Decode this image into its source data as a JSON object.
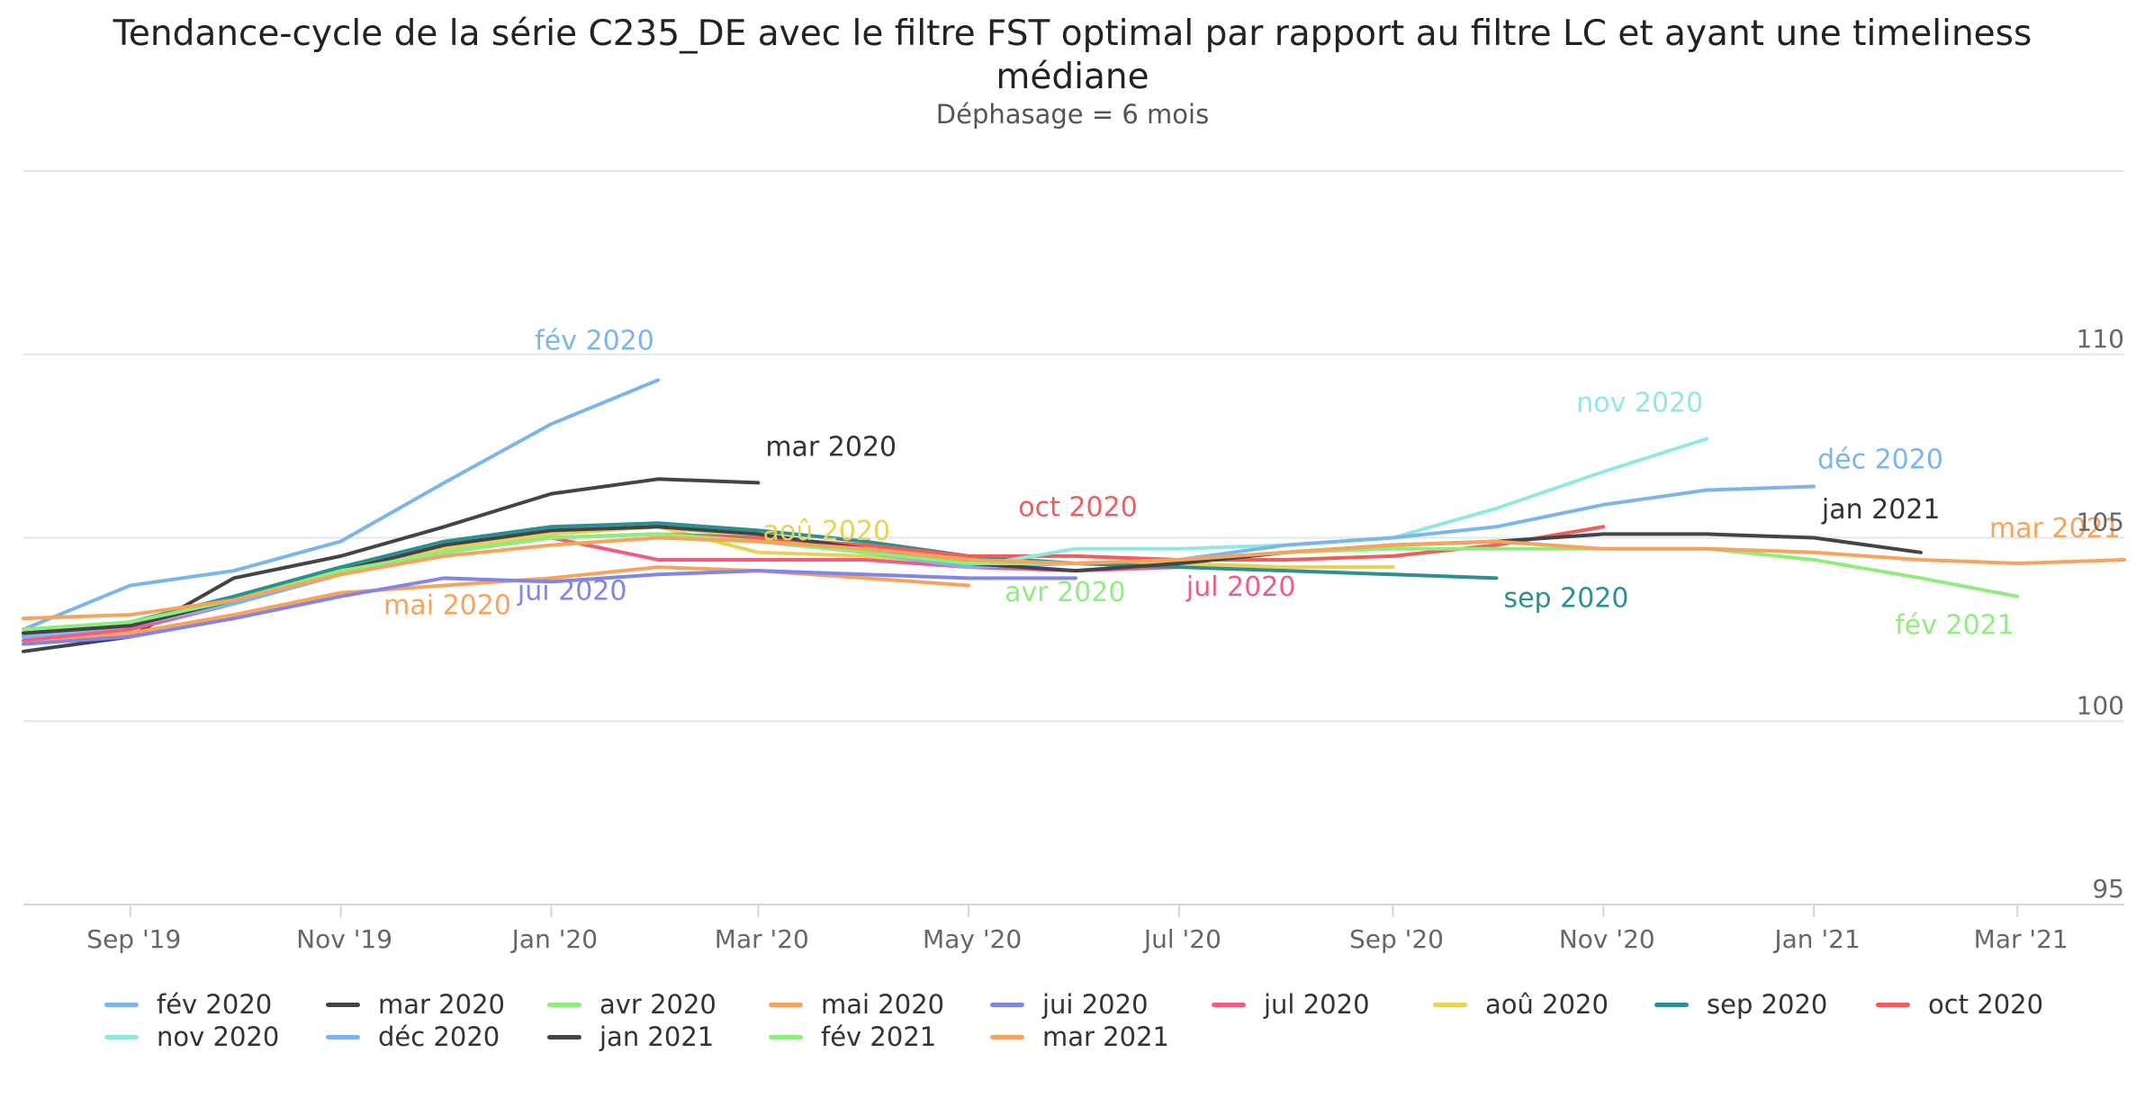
{
  "title": "Tendance-cycle de la série C235_DE avec le filtre FST optimal par rapport au filtre LC et ayant une timeliness médiane",
  "subtitle": "Déphasage = 6 mois",
  "chart_data": {
    "type": "line",
    "title": "Tendance-cycle de la série C235_DE avec le filtre FST optimal par rapport au filtre LC et ayant une timeliness médiane",
    "subtitle": "Déphasage = 6 mois",
    "xlabel": "",
    "ylabel": "",
    "x_range": [
      "2019-08",
      "2021-04"
    ],
    "ylim": [
      95,
      115
    ],
    "y_ticks": [
      95,
      100,
      105,
      110
    ],
    "x_ticks": [
      {
        "date": "2019-09",
        "label": "Sep '19"
      },
      {
        "date": "2019-11",
        "label": "Nov '19"
      },
      {
        "date": "2020-01",
        "label": "Jan '20"
      },
      {
        "date": "2020-03",
        "label": "Mar '20"
      },
      {
        "date": "2020-05",
        "label": "May '20"
      },
      {
        "date": "2020-07",
        "label": "Jul '20"
      },
      {
        "date": "2020-09",
        "label": "Sep '20"
      },
      {
        "date": "2020-11",
        "label": "Nov '20"
      },
      {
        "date": "2021-01",
        "label": "Jan '21"
      },
      {
        "date": "2021-03",
        "label": "Mar '21"
      }
    ],
    "grid": true,
    "legend_position": "bottom",
    "series": [
      {
        "name": "fév 2020",
        "color": "#7cb5ec",
        "start": "2019-08",
        "values": [
          102.5,
          103.7,
          104.1,
          104.9,
          106.5,
          108.1,
          109.3
        ]
      },
      {
        "name": "mar 2020",
        "color": "#434348",
        "start": "2019-08",
        "values": [
          101.9,
          102.3,
          103.9,
          104.5,
          105.3,
          106.2,
          106.6,
          106.5
        ]
      },
      {
        "name": "avr 2020",
        "color": "#90ed7d",
        "start": "2019-08",
        "values": [
          102.3,
          102.6,
          103.3,
          104.1,
          104.7,
          105.1,
          105.3,
          105.0,
          104.7,
          104.3
        ]
      },
      {
        "name": "mai 2020",
        "color": "#f7a35c",
        "start": "2019-08",
        "values": [
          102.1,
          102.4,
          102.9,
          103.5,
          103.7,
          103.9,
          104.2,
          104.1,
          103.9,
          103.7
        ]
      },
      {
        "name": "jui 2020",
        "color": "#8085e9",
        "start": "2019-08",
        "values": [
          102.1,
          102.3,
          102.8,
          103.4,
          103.9,
          103.8,
          104.0,
          104.1,
          104.0,
          103.9,
          103.9
        ]
      },
      {
        "name": "jul 2020",
        "color": "#f15c80",
        "start": "2019-08",
        "values": [
          102.2,
          102.5,
          103.2,
          104.0,
          104.6,
          105.0,
          104.4,
          104.4,
          104.4,
          104.2,
          104.1,
          104.2
        ]
      },
      {
        "name": "aoû 2020",
        "color": "#e4d354",
        "start": "2019-08",
        "values": [
          102.4,
          102.7,
          103.3,
          104.1,
          104.7,
          105.1,
          105.3,
          104.6,
          104.5,
          104.3,
          104.3,
          104.3,
          104.2,
          104.2
        ]
      },
      {
        "name": "sep 2020",
        "color": "#2b908f",
        "start": "2019-08",
        "values": [
          102.3,
          102.7,
          103.4,
          104.2,
          104.9,
          105.3,
          105.4,
          105.2,
          104.9,
          104.5,
          104.3,
          104.2,
          104.1,
          104.0,
          103.9
        ]
      },
      {
        "name": "oct 2020",
        "color": "#f45b5b",
        "start": "2019-08",
        "values": [
          102.4,
          102.6,
          103.3,
          104.0,
          104.6,
          105.0,
          105.1,
          105.0,
          104.8,
          104.5,
          104.5,
          104.4,
          104.4,
          104.5,
          104.8,
          105.3
        ]
      },
      {
        "name": "nov 2020",
        "color": "#91e8e1",
        "start": "2019-08",
        "values": [
          102.3,
          102.6,
          103.2,
          104.0,
          104.6,
          105.0,
          105.1,
          104.9,
          104.6,
          104.2,
          104.7,
          104.7,
          104.8,
          105.0,
          105.8,
          106.8,
          107.7
        ]
      },
      {
        "name": "déc 2020",
        "color": "#7cb5ec",
        "start": "2019-08",
        "values": [
          102.3,
          102.6,
          103.2,
          104.0,
          104.6,
          105.0,
          105.1,
          104.9,
          104.6,
          104.2,
          104.3,
          104.4,
          104.8,
          105.0,
          105.3,
          105.9,
          106.3,
          106.4
        ]
      },
      {
        "name": "jan 2021",
        "color": "#434348",
        "start": "2019-08",
        "values": [
          102.4,
          102.6,
          103.3,
          104.1,
          104.8,
          105.2,
          105.3,
          105.1,
          104.7,
          104.3,
          104.1,
          104.3,
          104.6,
          104.8,
          104.9,
          105.1,
          105.1,
          105.0,
          104.6
        ]
      },
      {
        "name": "fév 2021",
        "color": "#90ed7d",
        "start": "2019-08",
        "values": [
          102.5,
          102.7,
          103.3,
          104.1,
          104.6,
          105.0,
          105.1,
          104.9,
          104.6,
          104.3,
          104.3,
          104.4,
          104.6,
          104.7,
          104.7,
          104.7,
          104.7,
          104.4,
          103.9,
          103.4
        ]
      },
      {
        "name": "mar 2021",
        "color": "#f7a35c",
        "start": "2019-08",
        "values": [
          102.8,
          102.9,
          103.3,
          104.0,
          104.5,
          104.8,
          105.0,
          104.9,
          104.7,
          104.4,
          104.3,
          104.4,
          104.6,
          104.8,
          104.9,
          104.7,
          104.7,
          104.6,
          104.4,
          104.3,
          104.4
        ]
      }
    ],
    "annotations": [
      {
        "text": "fév 2020",
        "series": "fév 2020"
      },
      {
        "text": "mar 2020",
        "series": "mar 2020"
      },
      {
        "text": "avr 2020",
        "series": "avr 2020"
      },
      {
        "text": "mai 2020",
        "series": "mai 2020"
      },
      {
        "text": "jui 2020",
        "series": "jui 2020"
      },
      {
        "text": "jul 2020",
        "series": "jul 2020"
      },
      {
        "text": "aoû 2020",
        "series": "aoû 2020"
      },
      {
        "text": "sep 2020",
        "series": "sep 2020"
      },
      {
        "text": "oct 2020",
        "series": "oct 2020"
      },
      {
        "text": "nov 2020",
        "series": "nov 2020"
      },
      {
        "text": "déc 2020",
        "series": "déc 2020"
      },
      {
        "text": "jan 2021",
        "series": "jan 2021"
      },
      {
        "text": "fév 2021",
        "series": "fév 2021"
      },
      {
        "text": "mar 2021",
        "series": "mar 2021"
      }
    ]
  }
}
